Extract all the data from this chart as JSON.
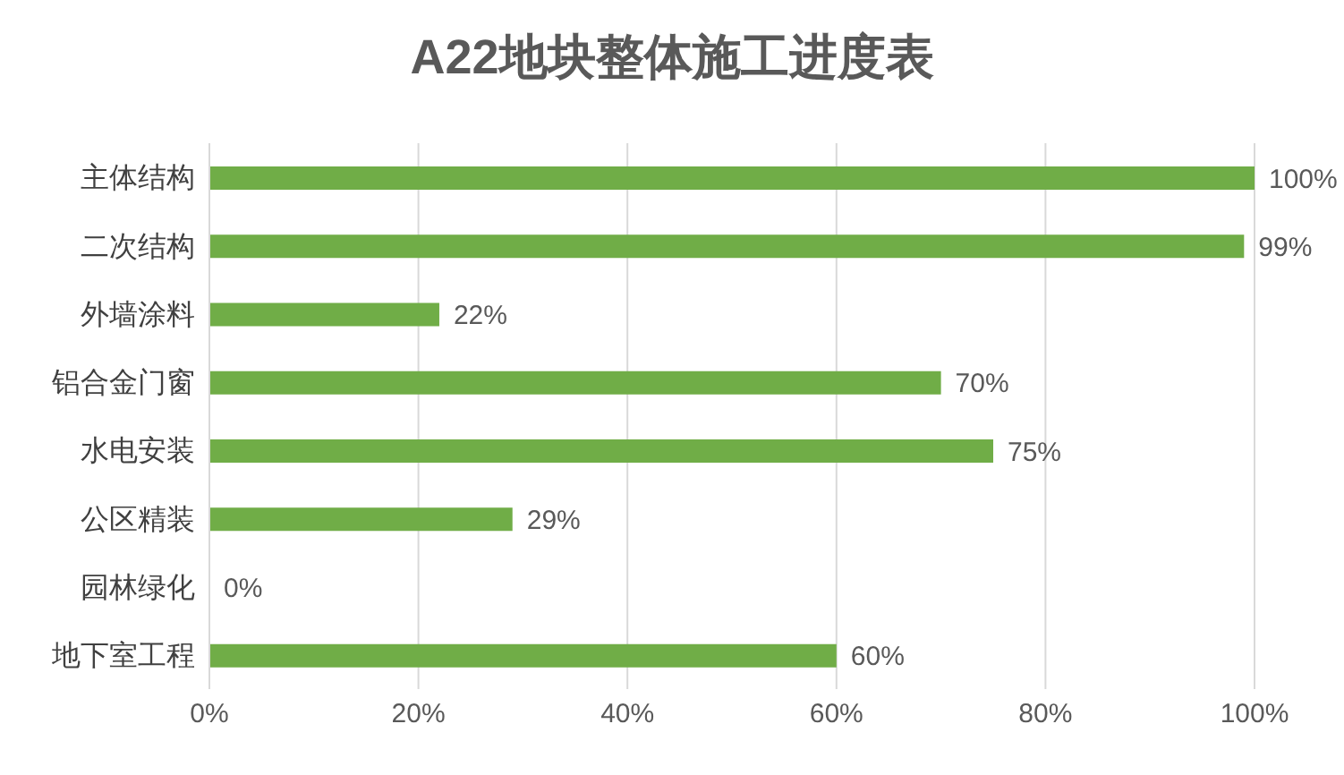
{
  "chart_data": {
    "type": "bar",
    "orientation": "horizontal",
    "title": "A22地块整体施工进度表",
    "categories": [
      "主体结构",
      "二次结构",
      "外墙涂料",
      "铝合金门窗",
      "水电安装",
      "公区精装",
      "园林绿化",
      "地下室工程"
    ],
    "values": [
      100,
      99,
      22,
      70,
      75,
      29,
      0,
      60
    ],
    "value_labels": [
      "100%",
      "99%",
      "22%",
      "70%",
      "75%",
      "29%",
      "0%",
      "60%"
    ],
    "color": "#70ad47",
    "xlim": [
      0,
      100
    ],
    "xticks": [
      {
        "value": 0,
        "label": "0%"
      },
      {
        "value": 20,
        "label": "20%"
      },
      {
        "value": 40,
        "label": "40%"
      },
      {
        "value": 60,
        "label": "60%"
      },
      {
        "value": 80,
        "label": "80%"
      },
      {
        "value": 100,
        "label": "100%"
      }
    ],
    "grid": "x"
  }
}
